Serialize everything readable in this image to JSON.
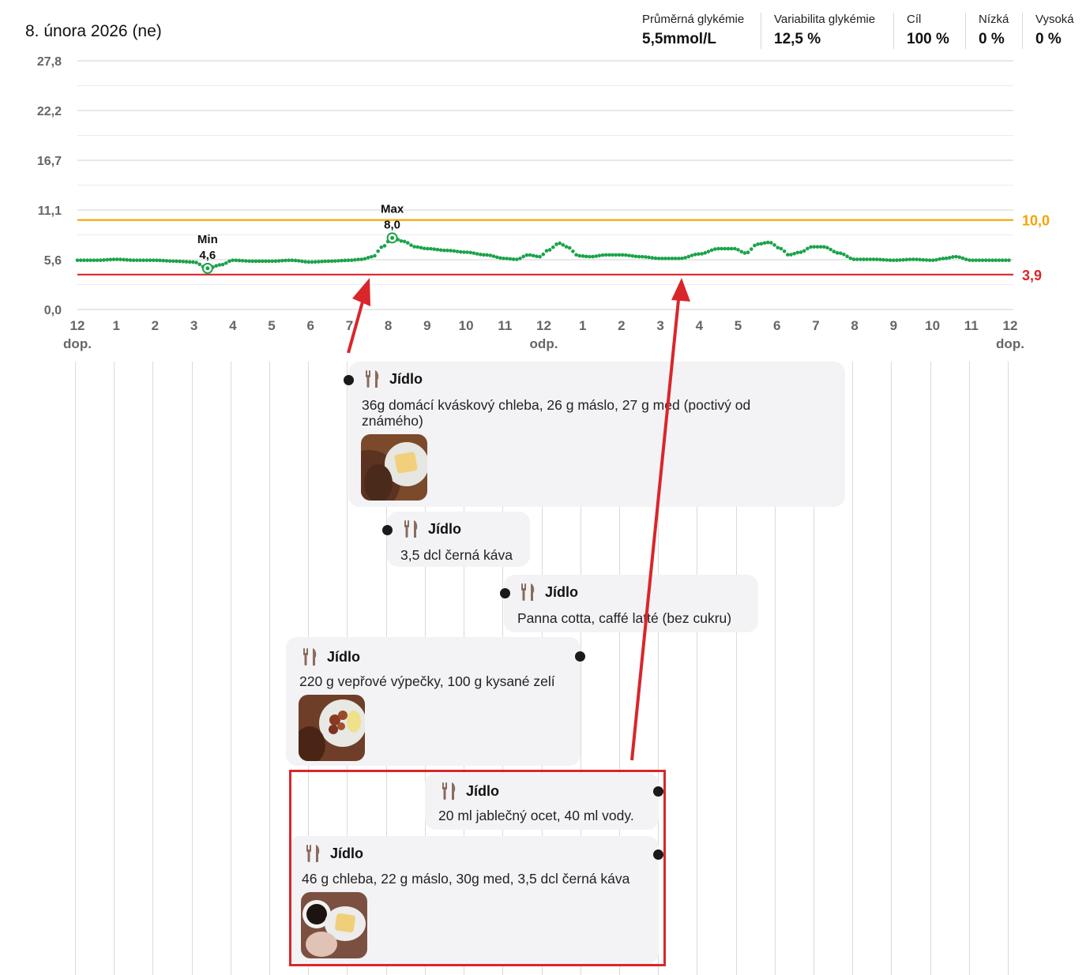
{
  "header": {
    "date": "8. února 2026 (ne)"
  },
  "stats": [
    {
      "label": "Průměrná glykémie",
      "value": "5,5mmol/L"
    },
    {
      "label": "Variabilita glykémie",
      "value": "12,5 %"
    },
    {
      "label": "Cíl",
      "value": "100 %"
    },
    {
      "label": "Nízká",
      "value": "0 %"
    },
    {
      "label": "Vysoká",
      "value": "0 %"
    }
  ],
  "chart_data": {
    "type": "line",
    "y_ticks": [
      "27,8",
      "22,2",
      "16,7",
      "11,1",
      "5,6",
      "0,0"
    ],
    "ylim": [
      0,
      27.8
    ],
    "x_ticks": [
      "12",
      "1",
      "2",
      "3",
      "4",
      "5",
      "6",
      "7",
      "8",
      "9",
      "10",
      "11",
      "12",
      "1",
      "2",
      "3",
      "4",
      "5",
      "6",
      "7",
      "8",
      "9",
      "10",
      "11",
      "12"
    ],
    "x_period_labels": [
      "dop.",
      "odp.",
      "dop."
    ],
    "thresholds": {
      "high": {
        "value": 10.0,
        "label": "10,0",
        "color": "#f5a300"
      },
      "low": {
        "value": 3.9,
        "label": "3,9",
        "color": "#d9262b"
      }
    },
    "series": [
      {
        "color": "#1aa34a",
        "x_hours": [
          0,
          0.5,
          1,
          1.5,
          2,
          2.5,
          3,
          3.35,
          3.7,
          4,
          4.5,
          5,
          5.5,
          6,
          6.5,
          7,
          7.3,
          7.6,
          7.85,
          8.1,
          8.4,
          8.7,
          9,
          9.5,
          10,
          10.5,
          11,
          11.3,
          11.6,
          11.9,
          12.1,
          12.4,
          12.6,
          12.9,
          13.2,
          13.6,
          14,
          14.5,
          15,
          15.5,
          16,
          16.5,
          16.9,
          17.2,
          17.5,
          17.8,
          18.1,
          18.3,
          18.6,
          18.9,
          19.2,
          19.6,
          20,
          20.5,
          21,
          21.5,
          22,
          22.3,
          22.6,
          23,
          23.5,
          24
        ],
        "y": [
          5.5,
          5.5,
          5.6,
          5.5,
          5.5,
          5.4,
          5.3,
          4.6,
          5.0,
          5.5,
          5.4,
          5.4,
          5.5,
          5.3,
          5.4,
          5.5,
          5.6,
          5.9,
          7.0,
          8.0,
          7.6,
          7.0,
          6.8,
          6.6,
          6.4,
          6.1,
          5.7,
          5.6,
          6.1,
          5.9,
          6.6,
          7.4,
          7.0,
          6.0,
          5.9,
          6.1,
          6.1,
          5.9,
          5.7,
          5.7,
          6.2,
          6.8,
          6.8,
          6.3,
          7.3,
          7.5,
          6.8,
          6.1,
          6.4,
          7.0,
          7.0,
          6.3,
          5.6,
          5.6,
          5.5,
          5.6,
          5.5,
          5.7,
          5.9,
          5.5,
          5.5,
          5.5
        ]
      }
    ],
    "annotations": [
      {
        "label": "Min",
        "value": "4,6",
        "x_hours": 3.35,
        "y": 4.6
      },
      {
        "label": "Max",
        "value": "8,0",
        "x_hours": 8.1,
        "y": 8.0
      }
    ]
  },
  "meals": [
    {
      "title": "Jídlo",
      "text": "36g domácí kváskový chleba, 26 g máslo, 27 g med (poctivý od známého)",
      "photo": "toast with butter and honey on plate"
    },
    {
      "title": "Jídlo",
      "text": "3,5 dcl černá káva"
    },
    {
      "title": "Jídlo",
      "text": "Panna cotta, caffé latté (bez cukru)"
    },
    {
      "title": "Jídlo",
      "text": "220 g vepřové výpečky, 100 g kysané zelí",
      "photo": "pork with sauerkraut on plate"
    },
    {
      "title": "Jídlo",
      "text": "20 ml jablečný ocet, 40 ml vody."
    },
    {
      "title": "Jídlo",
      "text": "46 g chleba, 22 g máslo, 30g med, 3,5 dcl černá káva",
      "photo": "toast with coffee"
    }
  ],
  "colors": {
    "glucose": "#1aa34a",
    "high": "#f5a300",
    "low": "#d9262b",
    "highlight": "#d9262b",
    "card": "#f3f3f5"
  }
}
